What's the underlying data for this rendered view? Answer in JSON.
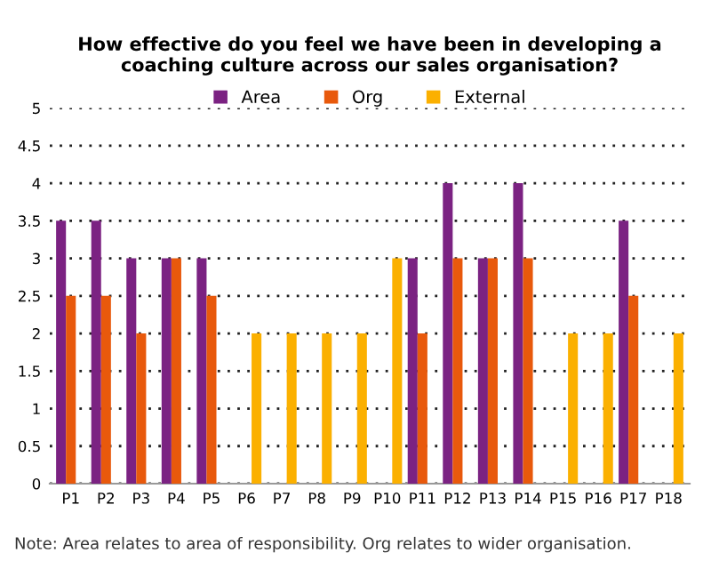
{
  "chart_data": {
    "type": "bar",
    "title": "How effective do you feel we have been in developing a coaching culture across our sales organisation?",
    "categories": [
      "P1",
      "P2",
      "P3",
      "P4",
      "P5",
      "P6",
      "P7",
      "P8",
      "P9",
      "P10",
      "P11",
      "P12",
      "P13",
      "P14",
      "P15",
      "P16",
      "P17",
      "P18"
    ],
    "series": [
      {
        "name": "Area",
        "color": "#7b2282",
        "values": [
          3.5,
          3.5,
          3,
          3,
          3,
          null,
          null,
          null,
          null,
          null,
          3,
          4,
          3,
          4,
          null,
          null,
          3.5,
          null
        ]
      },
      {
        "name": "Org",
        "color": "#e8590c",
        "values": [
          2.5,
          2.5,
          2,
          3,
          2.5,
          null,
          null,
          null,
          null,
          null,
          2,
          3,
          3,
          3,
          null,
          null,
          2.5,
          null
        ]
      },
      {
        "name": "External",
        "color": "#fbb000",
        "values": [
          null,
          null,
          null,
          null,
          null,
          2,
          2,
          2,
          2,
          3,
          null,
          null,
          null,
          null,
          2,
          2,
          null,
          2
        ]
      }
    ],
    "ylim": [
      0,
      5
    ],
    "yticks": [
      0,
      0.5,
      1,
      1.5,
      2,
      2.5,
      3,
      3.5,
      4,
      4.5,
      5
    ],
    "grid": "y",
    "legend": "top",
    "annotations": [
      "Note: Area relates to area of responsibility. Org relates to wider organisation."
    ]
  }
}
